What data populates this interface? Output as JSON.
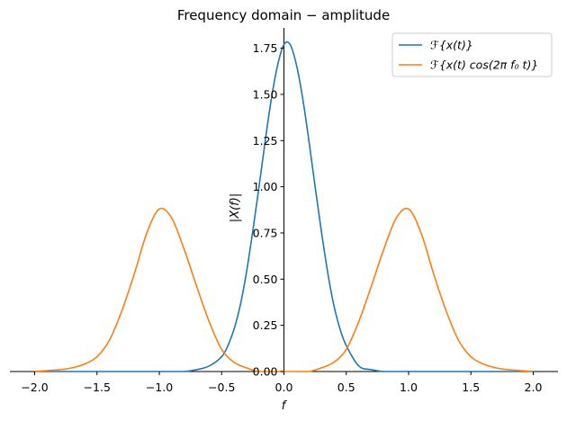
{
  "chart_data": {
    "type": "line",
    "title": "Frequency domain − amplitude",
    "xlabel": "f",
    "ylabel": "|X(f)|",
    "xlim": [
      -2.0,
      2.0
    ],
    "ylim": [
      0,
      1.86
    ],
    "x_ticks": [
      -2.0,
      -1.5,
      -1.0,
      -0.5,
      0.0,
      0.5,
      1.0,
      1.5,
      2.0
    ],
    "x_tick_labels": [
      "−2.0",
      "−1.5",
      "−1.0",
      "−0.5",
      "0.0",
      "0.5",
      "1.0",
      "1.5",
      "2.0"
    ],
    "y_ticks": [
      0.0,
      0.25,
      0.5,
      0.75,
      1.0,
      1.25,
      1.5,
      1.75
    ],
    "y_tick_labels": [
      "0.00",
      "0.25",
      "0.50",
      "0.75",
      "1.00",
      "1.25",
      "1.50",
      "1.75"
    ],
    "legend_position": "top-right",
    "grid": false,
    "series": [
      {
        "name": "ℱ{x(t)}",
        "color": "#1f77b4",
        "x": [
          -2.0,
          -0.9,
          -0.8,
          -0.7,
          -0.6,
          -0.5,
          -0.45,
          -0.4,
          -0.35,
          -0.3,
          -0.25,
          -0.2,
          -0.15,
          -0.1,
          -0.05,
          0.0,
          0.05,
          0.1,
          0.15,
          0.2,
          0.25,
          0.3,
          0.35,
          0.4,
          0.45,
          0.5,
          0.6,
          0.7,
          0.8,
          0.9,
          2.0
        ],
        "y": [
          0.0,
          0.0,
          0.0,
          0.01,
          0.03,
          0.08,
          0.14,
          0.23,
          0.36,
          0.54,
          0.76,
          1.0,
          1.25,
          1.48,
          1.66,
          1.77,
          1.77,
          1.66,
          1.48,
          1.25,
          1.0,
          0.76,
          0.54,
          0.36,
          0.23,
          0.14,
          0.03,
          0.01,
          0.0,
          0.0,
          0.0
        ]
      },
      {
        "name": "ℱ{x(t) cos(2π f₀ t)}",
        "color": "#ff7f0e",
        "x": [
          -2.0,
          -1.8,
          -1.7,
          -1.6,
          -1.5,
          -1.4,
          -1.3,
          -1.2,
          -1.1,
          -1.0,
          -0.9,
          -0.8,
          -0.7,
          -0.6,
          -0.5,
          -0.4,
          -0.3,
          -0.2,
          -0.1,
          0.0,
          0.1,
          0.2,
          0.3,
          0.4,
          0.5,
          0.6,
          0.7,
          0.8,
          0.9,
          1.0,
          1.1,
          1.2,
          1.3,
          1.4,
          1.5,
          1.6,
          1.7,
          1.8,
          2.0
        ],
        "y": [
          0.0,
          0.01,
          0.02,
          0.04,
          0.08,
          0.17,
          0.33,
          0.53,
          0.75,
          0.88,
          0.83,
          0.66,
          0.46,
          0.27,
          0.12,
          0.05,
          0.02,
          0.0,
          0.0,
          0.0,
          0.0,
          0.0,
          0.02,
          0.05,
          0.12,
          0.27,
          0.46,
          0.66,
          0.83,
          0.88,
          0.75,
          0.53,
          0.33,
          0.17,
          0.08,
          0.04,
          0.02,
          0.01,
          0.0
        ]
      }
    ]
  }
}
